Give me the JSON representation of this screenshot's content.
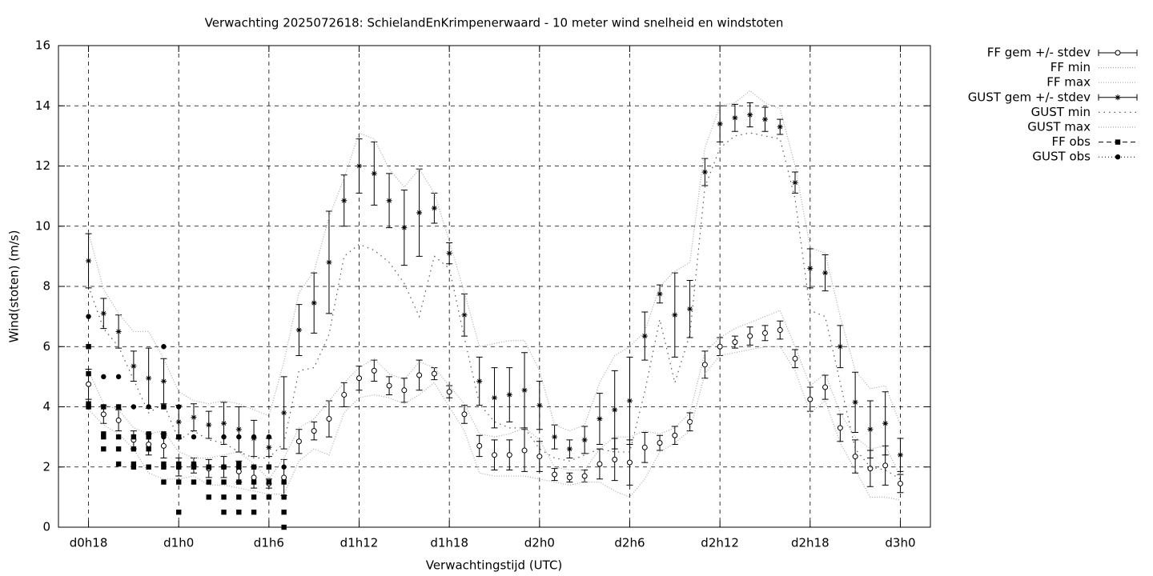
{
  "chart_data": {
    "type": "errorbar",
    "title": "Verwachting 2025072618: SchielandEnKrimpenerwaard - 10 meter wind snelheid en windstoten",
    "x_label": "Verwachtingstijd (UTC)",
    "y_label": "Wind(stoten) (m/s)",
    "xlim": [
      16,
      74
    ],
    "ylim": [
      0,
      16
    ],
    "xticks": [
      {
        "value": 18,
        "label": "d0h18"
      },
      {
        "value": 24,
        "label": "d1h0"
      },
      {
        "value": 30,
        "label": "d1h6"
      },
      {
        "value": 36,
        "label": "d1h12"
      },
      {
        "value": 42,
        "label": "d1h18"
      },
      {
        "value": 48,
        "label": "d2h0"
      },
      {
        "value": 54,
        "label": "d2h6"
      },
      {
        "value": 60,
        "label": "d2h12"
      },
      {
        "value": 66,
        "label": "d2h18"
      },
      {
        "value": 72,
        "label": "d3h0"
      }
    ],
    "yticks": [
      0,
      2,
      4,
      6,
      8,
      10,
      12,
      14,
      16
    ],
    "grid": true,
    "legend": "outside-top-right",
    "x": [
      18,
      19,
      20,
      21,
      22,
      23,
      24,
      25,
      26,
      27,
      28,
      29,
      30,
      31,
      32,
      33,
      34,
      35,
      36,
      37,
      38,
      39,
      40,
      41,
      42,
      43,
      44,
      45,
      46,
      47,
      48,
      49,
      50,
      51,
      52,
      53,
      54,
      55,
      56,
      57,
      58,
      59,
      60,
      61,
      62,
      63,
      64,
      65,
      66,
      67,
      68,
      69,
      70,
      71,
      72
    ],
    "series": [
      {
        "name": "FF gem +/- stdev",
        "color": "#000000",
        "style": "errorbar",
        "marker": "circle-open",
        "values": [
          4.75,
          3.75,
          3.55,
          2.9,
          2.75,
          2.7,
          2.0,
          2.05,
          1.95,
          2.0,
          1.85,
          1.65,
          1.45,
          1.65,
          2.85,
          3.2,
          3.6,
          4.4,
          4.95,
          5.2,
          4.7,
          4.55,
          5.05,
          5.1,
          4.5,
          3.75,
          2.7,
          2.4,
          2.4,
          2.55,
          2.35,
          1.75,
          1.65,
          1.7,
          2.1,
          2.25,
          2.15,
          2.65,
          2.8,
          3.05,
          3.5,
          5.4,
          6.0,
          6.15,
          6.35,
          6.45,
          6.55,
          5.6,
          4.25,
          4.65,
          3.3,
          2.35,
          1.95,
          2.05,
          1.45
        ],
        "errors": [
          0.5,
          0.3,
          0.35,
          0.3,
          0.35,
          0.4,
          0.3,
          0.25,
          0.3,
          0.35,
          0.35,
          0.35,
          0.15,
          0.6,
          0.4,
          0.3,
          0.6,
          0.4,
          0.4,
          0.35,
          0.3,
          0.4,
          0.5,
          0.2,
          0.2,
          0.3,
          0.35,
          0.5,
          0.5,
          0.7,
          0.5,
          0.2,
          0.15,
          0.2,
          0.5,
          0.7,
          0.75,
          0.5,
          0.25,
          0.3,
          0.3,
          0.45,
          0.3,
          0.2,
          0.3,
          0.25,
          0.3,
          0.3,
          0.4,
          0.4,
          0.45,
          0.55,
          0.6,
          0.65,
          0.3
        ]
      },
      {
        "name": "FF min",
        "color": "#aaaaaa",
        "style": "dotted-line",
        "values": [
          3.9,
          3.4,
          3.1,
          2.6,
          1.8,
          1.6,
          1.6,
          1.7,
          1.4,
          1.4,
          1.3,
          1.2,
          1.1,
          1.1,
          2.2,
          2.6,
          2.4,
          3.8,
          4.3,
          4.4,
          4.3,
          4.1,
          4.4,
          4.8,
          4.0,
          3.2,
          1.8,
          1.7,
          1.7,
          1.7,
          1.6,
          1.5,
          1.4,
          1.5,
          1.5,
          1.2,
          1.0,
          1.6,
          2.5,
          2.8,
          3.2,
          5.1,
          5.7,
          5.8,
          5.9,
          6.0,
          6.0,
          5.2,
          3.8,
          4.2,
          2.8,
          1.9,
          1.0,
          1.0,
          0.9
        ]
      },
      {
        "name": "FF max",
        "color": "#aaaaaa",
        "style": "dotted-line",
        "values": [
          5.2,
          4.1,
          3.9,
          3.3,
          3.1,
          3.2,
          2.5,
          2.3,
          2.3,
          2.4,
          2.5,
          2.1,
          1.6,
          2.3,
          3.3,
          3.6,
          4.2,
          4.8,
          5.3,
          5.6,
          5.1,
          4.9,
          5.5,
          5.3,
          4.7,
          4.1,
          3.1,
          3.0,
          3.1,
          3.3,
          2.9,
          2.0,
          1.9,
          1.9,
          2.6,
          3.0,
          3.0,
          3.2,
          3.1,
          3.3,
          3.8,
          5.8,
          6.3,
          6.6,
          6.8,
          7.0,
          7.2,
          6.0,
          4.7,
          5.1,
          3.8,
          3.0,
          2.6,
          2.7,
          1.7
        ]
      },
      {
        "name": "GUST gem +/- stdev",
        "color": "#000000",
        "style": "errorbar",
        "marker": "star",
        "values": [
          8.85,
          7.1,
          6.5,
          5.35,
          4.95,
          4.85,
          3.5,
          3.65,
          3.4,
          3.45,
          3.25,
          2.95,
          2.65,
          3.8,
          6.55,
          7.45,
          8.8,
          10.85,
          12.0,
          11.75,
          10.85,
          9.95,
          10.45,
          10.6,
          9.1,
          7.05,
          4.85,
          4.3,
          4.4,
          4.55,
          4.05,
          3.0,
          2.6,
          2.9,
          3.6,
          3.9,
          4.2,
          6.35,
          7.75,
          7.05,
          7.25,
          11.8,
          13.4,
          13.6,
          13.7,
          13.55,
          13.3,
          11.45,
          8.6,
          8.45,
          6.0,
          4.15,
          3.25,
          3.45,
          2.4
        ],
        "errors": [
          0.9,
          0.5,
          0.55,
          0.5,
          1.0,
          0.75,
          0.55,
          0.45,
          0.45,
          0.7,
          0.75,
          0.6,
          0.3,
          1.2,
          0.85,
          1.0,
          1.7,
          0.85,
          0.9,
          1.05,
          0.9,
          1.25,
          1.45,
          0.5,
          0.35,
          0.7,
          0.8,
          1.0,
          0.9,
          1.25,
          0.8,
          0.4,
          0.3,
          0.45,
          0.85,
          1.3,
          1.45,
          0.8,
          0.3,
          1.4,
          0.95,
          0.45,
          0.6,
          0.45,
          0.4,
          0.4,
          0.25,
          0.35,
          0.65,
          0.6,
          0.7,
          1.0,
          0.95,
          1.05,
          0.55
        ]
      },
      {
        "name": "GUST min",
        "color": "#555555",
        "style": "sparse-dotted-line",
        "values": [
          8.0,
          6.6,
          6.0,
          4.9,
          3.8,
          4.1,
          2.9,
          3.2,
          2.9,
          2.8,
          2.5,
          2.3,
          2.3,
          2.8,
          5.2,
          5.3,
          6.4,
          9.0,
          9.4,
          9.2,
          8.8,
          8.1,
          7.0,
          9.0,
          8.6,
          6.3,
          4.1,
          3.5,
          3.3,
          3.3,
          2.6,
          2.3,
          2.2,
          2.4,
          2.6,
          2.5,
          2.5,
          4.5,
          6.9,
          4.8,
          6.4,
          11.3,
          12.6,
          13.0,
          13.1,
          13.0,
          12.9,
          10.9,
          7.2,
          7.0,
          4.8,
          2.6,
          2.0,
          1.9,
          1.6
        ]
      },
      {
        "name": "GUST max",
        "color": "#aaaaaa",
        "style": "dotted-line",
        "values": [
          9.8,
          7.9,
          7.1,
          6.5,
          6.5,
          5.6,
          4.5,
          4.2,
          4.1,
          4.2,
          4.1,
          3.9,
          3.7,
          5.5,
          7.8,
          8.5,
          10.3,
          11.6,
          13.1,
          12.9,
          11.9,
          11.3,
          11.9,
          11.1,
          9.5,
          7.8,
          6.0,
          6.1,
          6.2,
          6.2,
          5.2,
          3.4,
          3.2,
          3.4,
          4.8,
          5.7,
          6.0,
          6.5,
          8.0,
          8.5,
          8.8,
          12.6,
          14.0,
          14.1,
          14.5,
          14.1,
          13.9,
          12.0,
          9.3,
          9.1,
          7.0,
          5.2,
          4.6,
          4.7,
          3.4
        ]
      },
      {
        "name": "FF obs",
        "color": "#000000",
        "style": "points",
        "marker": "square",
        "legend_line": "dashed",
        "x": [
          18,
          18,
          18,
          18,
          19,
          19,
          19,
          19,
          20,
          20,
          20,
          20,
          21,
          21,
          21,
          21,
          22,
          22,
          22,
          22,
          23,
          23,
          23,
          23,
          23,
          24,
          24,
          24,
          24,
          24,
          25,
          25,
          25,
          26,
          26,
          26,
          27,
          27,
          27,
          27,
          28,
          28,
          28,
          28,
          28,
          29,
          29,
          29,
          29,
          30,
          30,
          30,
          31,
          31,
          31,
          31
        ],
        "values": [
          4.0,
          4.1,
          5.1,
          6.0,
          4.0,
          3.1,
          3.0,
          2.6,
          4.0,
          3.0,
          2.6,
          2.1,
          3.0,
          2.6,
          2.1,
          2.0,
          3.1,
          3.0,
          2.6,
          2.0,
          4.0,
          3.1,
          2.1,
          2.0,
          1.5,
          3.0,
          2.1,
          2.0,
          1.5,
          0.5,
          2.1,
          2.0,
          1.5,
          2.0,
          1.5,
          1.0,
          2.0,
          1.5,
          1.0,
          0.5,
          2.1,
          2.0,
          1.5,
          1.0,
          0.5,
          2.0,
          1.5,
          1.0,
          0.5,
          2.0,
          1.5,
          1.0,
          1.5,
          1.0,
          0.5,
          0.0
        ]
      },
      {
        "name": "GUST obs",
        "color": "#000000",
        "style": "points",
        "marker": "circle",
        "legend_line": "dotted",
        "x": [
          18,
          19,
          20,
          21,
          22,
          23,
          23,
          23,
          24,
          24,
          25,
          26,
          27,
          27,
          28,
          28,
          29,
          29,
          30,
          30,
          31
        ],
        "values": [
          7.0,
          5.0,
          5.0,
          4.0,
          4.0,
          6.0,
          4.0,
          3.0,
          4.0,
          3.0,
          3.0,
          2.0,
          3.0,
          2.0,
          3.0,
          2.0,
          3.0,
          2.0,
          3.0,
          2.0,
          2.0
        ]
      }
    ]
  }
}
